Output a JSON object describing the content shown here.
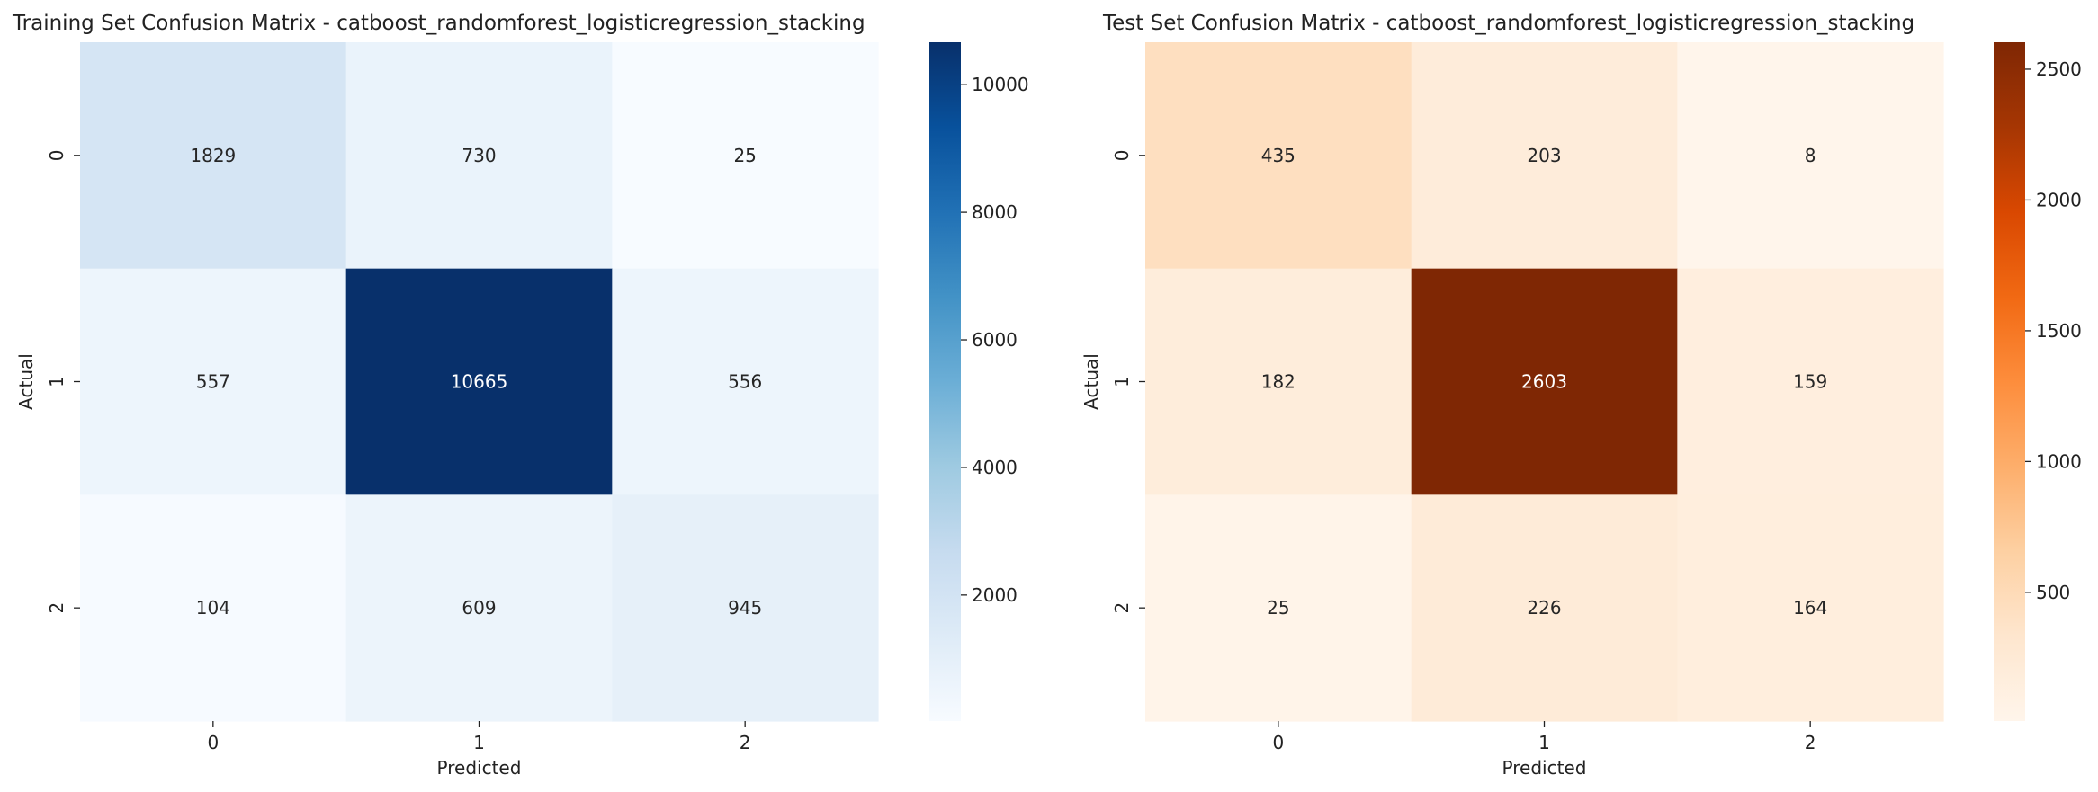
{
  "chart_data": [
    {
      "type": "heatmap",
      "title": "Training Set Confusion Matrix - catboost_randomforest_logisticregression_stacking",
      "xlabel": "Predicted",
      "ylabel": "Actual",
      "x_categories": [
        "0",
        "1",
        "2"
      ],
      "y_categories": [
        "0",
        "1",
        "2"
      ],
      "values": [
        [
          1829,
          730,
          25
        ],
        [
          557,
          10665,
          556
        ],
        [
          104,
          609,
          945
        ]
      ],
      "colormap": "Blues",
      "colors": [
        "#f7fbff",
        "#deebf7",
        "#c6dbef",
        "#9ecae1",
        "#6baed6",
        "#4292c6",
        "#2171b5",
        "#08519c",
        "#08306b"
      ],
      "colorbar_ticks": [
        2000,
        4000,
        6000,
        8000,
        10000
      ],
      "colorbar_range": [
        25,
        10665
      ]
    },
    {
      "type": "heatmap",
      "title": "Test Set Confusion Matrix - catboost_randomforest_logisticregression_stacking",
      "xlabel": "Predicted",
      "ylabel": "Actual",
      "x_categories": [
        "0",
        "1",
        "2"
      ],
      "y_categories": [
        "0",
        "1",
        "2"
      ],
      "values": [
        [
          435,
          203,
          8
        ],
        [
          182,
          2603,
          159
        ],
        [
          25,
          226,
          164
        ]
      ],
      "colormap": "Oranges",
      "colors": [
        "#fff5eb",
        "#fee6ce",
        "#fdd0a2",
        "#fdae6b",
        "#fd8d3c",
        "#f16913",
        "#d94801",
        "#a63603",
        "#7f2704"
      ],
      "colorbar_ticks": [
        500,
        1000,
        1500,
        2000,
        2500
      ],
      "colorbar_range": [
        8,
        2603
      ]
    }
  ]
}
